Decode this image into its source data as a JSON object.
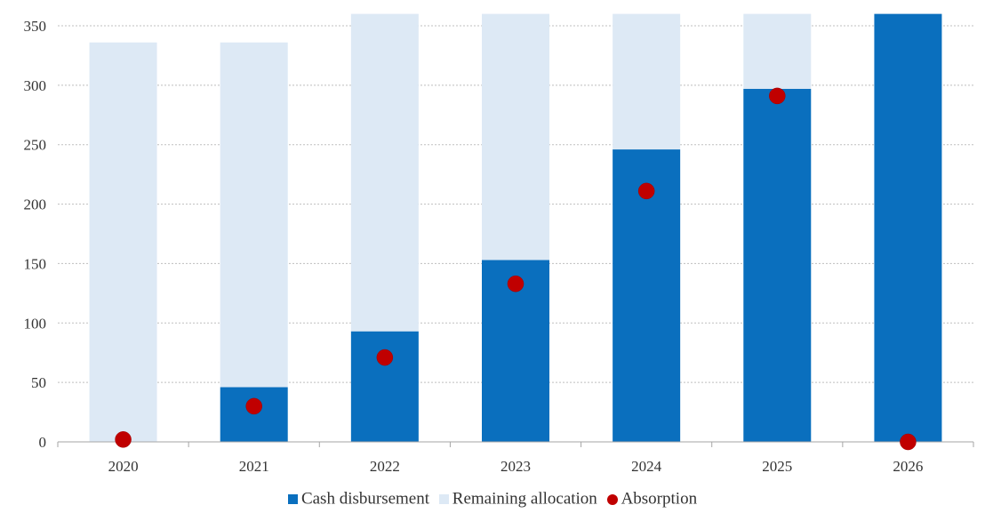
{
  "chart_data": {
    "type": "bar",
    "title": "",
    "xlabel": "",
    "ylabel": "",
    "categories": [
      "2020",
      "2021",
      "2022",
      "2023",
      "2024",
      "2025",
      "2026"
    ],
    "ylim": [
      0,
      360
    ],
    "yticks": [
      0,
      50,
      100,
      150,
      200,
      250,
      300,
      350
    ],
    "stacked": true,
    "grid": "horizontal",
    "legend_position": "bottom",
    "series": [
      {
        "name": "Cash disbursement",
        "kind": "bar",
        "color": "#0a6fbe",
        "values": [
          0,
          46,
          93,
          153,
          246,
          297,
          360
        ]
      },
      {
        "name": "Remaining allocation",
        "kind": "bar",
        "color": "#dde9f5",
        "values": [
          336,
          290,
          267,
          207,
          114,
          63,
          0
        ]
      },
      {
        "name": "Absorption",
        "kind": "scatter",
        "color": "#c00000",
        "values": [
          2,
          30,
          71,
          133,
          211,
          291,
          0
        ]
      }
    ]
  }
}
